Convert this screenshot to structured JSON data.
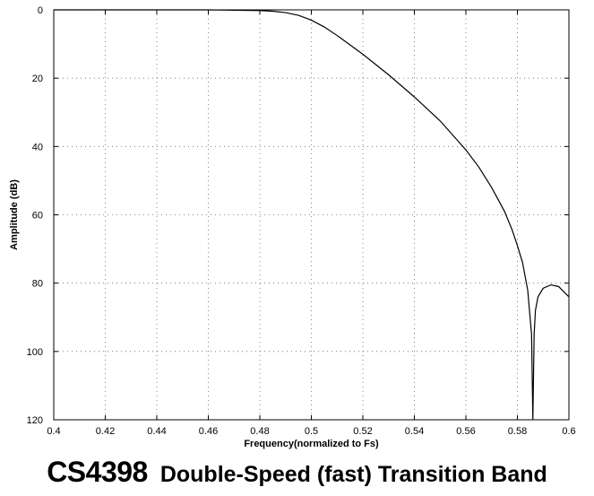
{
  "chart_data": {
    "type": "line",
    "title": "CS4398",
    "subtitle": "Double-Speed (fast) Transition Band",
    "xlabel": "Frequency(normalized to Fs)",
    "ylabel": "Amplitude (dB)",
    "xlim": [
      0.4,
      0.6
    ],
    "ylim": [
      0,
      120
    ],
    "y_inverted": true,
    "grid": true,
    "x_ticks": [
      "0.4",
      "0.42",
      "0.44",
      "0.46",
      "0.48",
      "0.5",
      "0.52",
      "0.54",
      "0.56",
      "0.58",
      "0.6"
    ],
    "y_ticks": [
      "0",
      "20",
      "40",
      "60",
      "80",
      "100",
      "120"
    ],
    "series": [
      {
        "x": [
          0.4,
          0.46,
          0.47,
          0.48,
          0.485,
          0.49,
          0.495,
          0.5,
          0.505,
          0.51,
          0.52,
          0.53,
          0.54,
          0.55,
          0.56,
          0.565,
          0.57,
          0.575,
          0.578,
          0.58,
          0.582,
          0.584,
          0.5855,
          0.586,
          0.5865,
          0.587,
          0.588,
          0.59,
          0.593,
          0.596,
          0.6
        ],
        "values": [
          0,
          0,
          0.1,
          0.2,
          0.4,
          0.8,
          1.6,
          3.0,
          5.0,
          7.5,
          13.0,
          19.0,
          25.5,
          32.5,
          41.0,
          46.0,
          52.0,
          59.0,
          64.5,
          69.0,
          74.0,
          82.0,
          95.0,
          120.0,
          95.0,
          88.0,
          84.0,
          81.5,
          80.5,
          81.0,
          84.0
        ]
      }
    ]
  }
}
